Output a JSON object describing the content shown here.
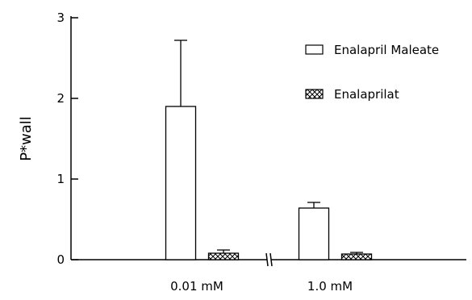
{
  "chart_data": {
    "type": "bar",
    "title": "",
    "xlabel": "",
    "ylabel": "P*wall",
    "ylim": [
      0,
      3
    ],
    "yticks": [
      "0",
      "1",
      "2",
      "3"
    ],
    "categories": [
      "0.01 mM",
      "1.0 mM"
    ],
    "axis_break": true,
    "series": [
      {
        "name": "Enalapril Maleate",
        "pattern": "open",
        "values": [
          1.9,
          0.64
        ],
        "errors": [
          0.82,
          0.07
        ]
      },
      {
        "name": "Enalaprilat",
        "pattern": "crosshatch",
        "values": [
          0.08,
          0.07
        ],
        "errors": [
          0.04,
          0.02
        ]
      }
    ],
    "legend_placement": "top-right",
    "grid": false
  },
  "colors": {
    "ink": "#000000",
    "background": "#ffffff",
    "bar_fill": "#ffffff"
  }
}
